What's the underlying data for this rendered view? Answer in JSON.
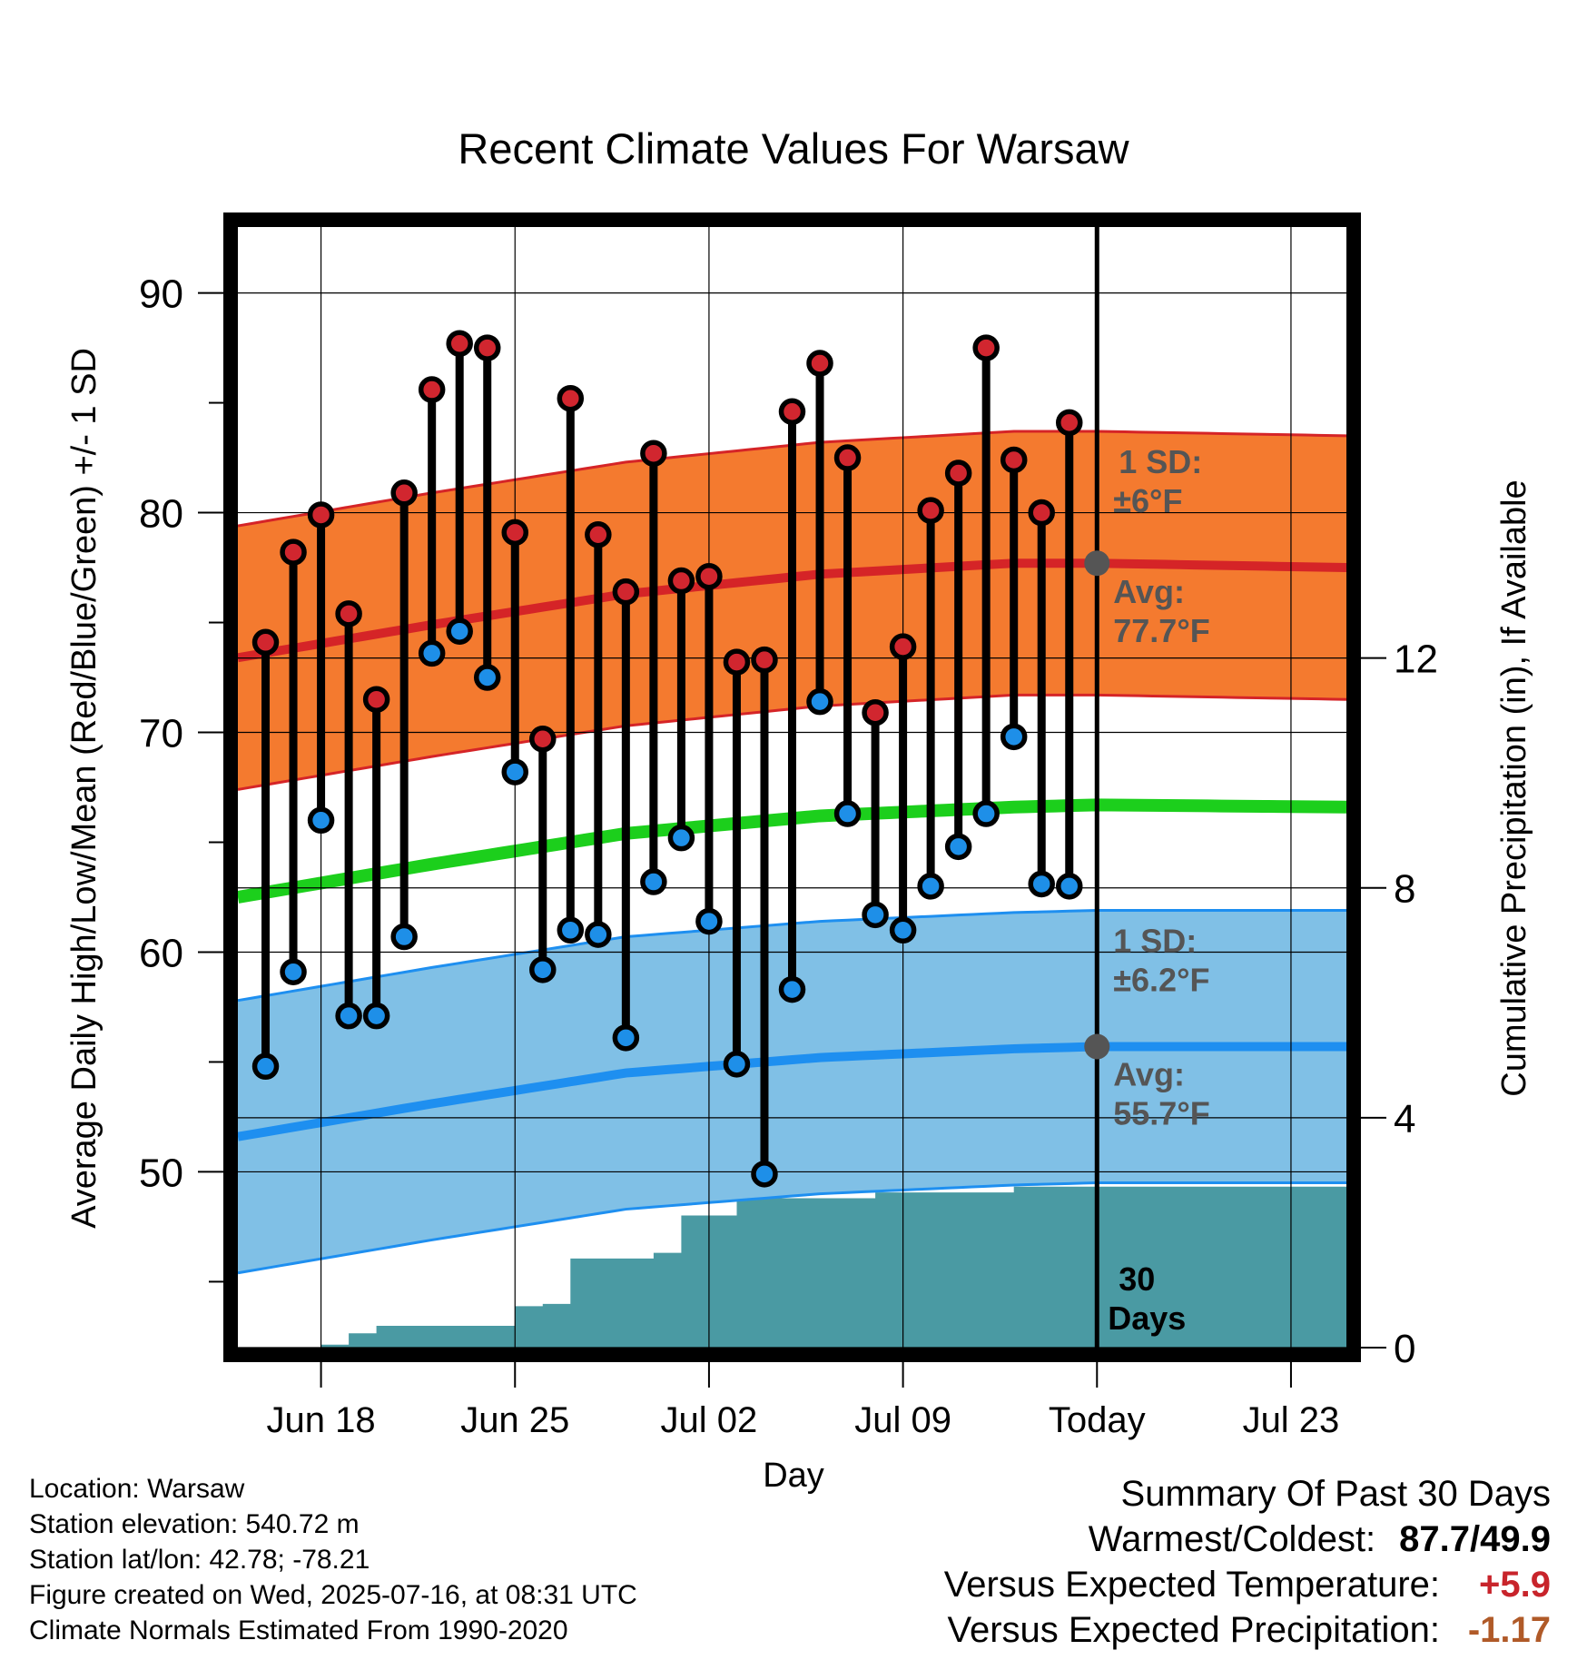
{
  "chart_data": {
    "type": "line",
    "title": "Recent Climate Values For Warsaw",
    "xlabel": "Day",
    "ylabel": "Average Daily High/Low/Mean (Red/Blue/Green) +/- 1 SD",
    "y2label": "Cumulative Precipitation (in), If Available",
    "ylim": [
      42,
      93
    ],
    "y2lim": [
      0,
      19.5
    ],
    "yticks": [
      "90",
      "80",
      "70",
      "60",
      "50"
    ],
    "y2ticks": [
      "12",
      "8",
      "4",
      "0"
    ],
    "x_tick_labels": [
      "Jun 18",
      "Jun 25",
      "Jul 02",
      "Jul 09",
      "Today",
      "Jul 23"
    ],
    "x_day_range": [
      "Jun 15",
      "Jul 25"
    ],
    "today": "Jul 16",
    "days": [
      "Jun 16",
      "Jun 17",
      "Jun 18",
      "Jun 19",
      "Jun 20",
      "Jun 21",
      "Jun 22",
      "Jun 23",
      "Jun 24",
      "Jun 25",
      "Jun 26",
      "Jun 27",
      "Jun 28",
      "Jun 29",
      "Jun 30",
      "Jul 01",
      "Jul 02",
      "Jul 03",
      "Jul 04",
      "Jul 05",
      "Jul 06",
      "Jul 07",
      "Jul 08",
      "Jul 09",
      "Jul 10",
      "Jul 11",
      "Jul 12",
      "Jul 13",
      "Jul 14",
      "Jul 15"
    ],
    "daily_high": [
      74.1,
      78.2,
      79.9,
      75.4,
      71.5,
      80.9,
      85.6,
      87.7,
      87.5,
      79.1,
      69.7,
      85.2,
      79.0,
      76.4,
      82.7,
      76.9,
      77.1,
      73.2,
      73.3,
      84.6,
      86.8,
      82.5,
      70.9,
      73.9,
      80.1,
      81.8,
      87.5,
      82.4,
      80.0,
      84.1
    ],
    "daily_low": [
      54.8,
      59.1,
      66.0,
      57.1,
      57.1,
      60.7,
      73.6,
      74.6,
      72.5,
      68.2,
      59.2,
      61.0,
      60.8,
      56.1,
      63.2,
      65.2,
      61.4,
      54.9,
      49.9,
      58.3,
      71.4,
      66.3,
      61.7,
      61.0,
      63.0,
      64.8,
      66.3,
      69.8,
      63.1,
      63.0
    ],
    "normal_high": {
      "days": [
        "Jun 15",
        "Jun 22",
        "Jun 29",
        "Jul 06",
        "Jul 13",
        "Jul 16",
        "Jul 25"
      ],
      "values": [
        73.4,
        74.9,
        76.3,
        77.2,
        77.7,
        77.7,
        77.5
      ]
    },
    "normal_high_sd": "±6°F",
    "normal_low": {
      "days": [
        "Jun 15",
        "Jun 22",
        "Jun 29",
        "Jul 06",
        "Jul 13",
        "Jul 16",
        "Jul 25"
      ],
      "values": [
        51.6,
        53.1,
        54.5,
        55.2,
        55.6,
        55.7,
        55.7
      ]
    },
    "normal_low_sd": "±6.2°F",
    "normal_mean": {
      "days": [
        "Jun 15",
        "Jun 22",
        "Jun 29",
        "Jul 06",
        "Jul 13",
        "Jul 16",
        "Jul 25"
      ],
      "values": [
        62.5,
        64.0,
        65.4,
        66.2,
        66.6,
        66.7,
        66.6
      ]
    },
    "cumulative_precip": {
      "days": [
        "Jun 17",
        "Jun 18",
        "Jun 19",
        "Jun 20",
        "Jun 21",
        "Jun 22",
        "Jun 23",
        "Jun 24",
        "Jun 25",
        "Jun 26",
        "Jun 27",
        "Jun 28",
        "Jun 29",
        "Jun 30",
        "Jul 01",
        "Jul 02",
        "Jul 03",
        "Jul 04",
        "Jul 05",
        "Jul 06",
        "Jul 07",
        "Jul 08",
        "Jul 09",
        "Jul 10",
        "Jul 11",
        "Jul 12",
        "Jul 13",
        "Jul 14",
        "Jul 15",
        "Jul 16",
        "Jul 25"
      ],
      "values": [
        0.0,
        0.05,
        0.25,
        0.38,
        0.38,
        0.38,
        0.38,
        0.38,
        0.72,
        0.76,
        1.55,
        1.55,
        1.55,
        1.65,
        2.3,
        2.3,
        2.6,
        2.6,
        2.6,
        2.6,
        2.6,
        2.7,
        2.7,
        2.7,
        2.7,
        2.7,
        2.8,
        2.8,
        2.8,
        2.8,
        2.8
      ]
    }
  },
  "annotations": {
    "high_sd_line1": "1 SD:",
    "high_sd_line2": "±6°F",
    "high_avg_line1": "Avg:",
    "high_avg_line2": "77.7°F",
    "low_sd_line1": "1 SD:",
    "low_sd_line2": "±6.2°F",
    "low_avg_line1": "Avg:",
    "low_avg_line2": "55.7°F",
    "days_line1": "30",
    "days_line2": "Days"
  },
  "station_info": {
    "location": "Location: Warsaw",
    "elevation": "Station elevation: 540.72 m",
    "latlon": "Station lat/lon: 42.78; -78.21",
    "created": "Figure created on Wed, 2025-07-16, at 08:31 UTC",
    "normals": "Climate Normals Estimated From 1990-2020"
  },
  "summary": {
    "heading": "Summary Of Past 30 Days",
    "extremes_label": "Warmest/Coldest:",
    "extremes_value": "87.7/49.9",
    "temp_label": "Versus Expected Temperature:",
    "temp_value": "+5.9",
    "precip_label": "Versus Expected Precipitation:",
    "precip_value": "-1.17"
  },
  "colors": {
    "high_band": "#f47a2f",
    "high_line": "#d52427",
    "low_band": "#80c0e6",
    "low_line": "#1e8ff0",
    "mean_line": "#1ccf1c",
    "precip": "#4a9aa3",
    "high_marker": "#d1262f",
    "low_marker": "#1e8fe8",
    "annotation": "#555555",
    "today_dot": "#555555"
  }
}
